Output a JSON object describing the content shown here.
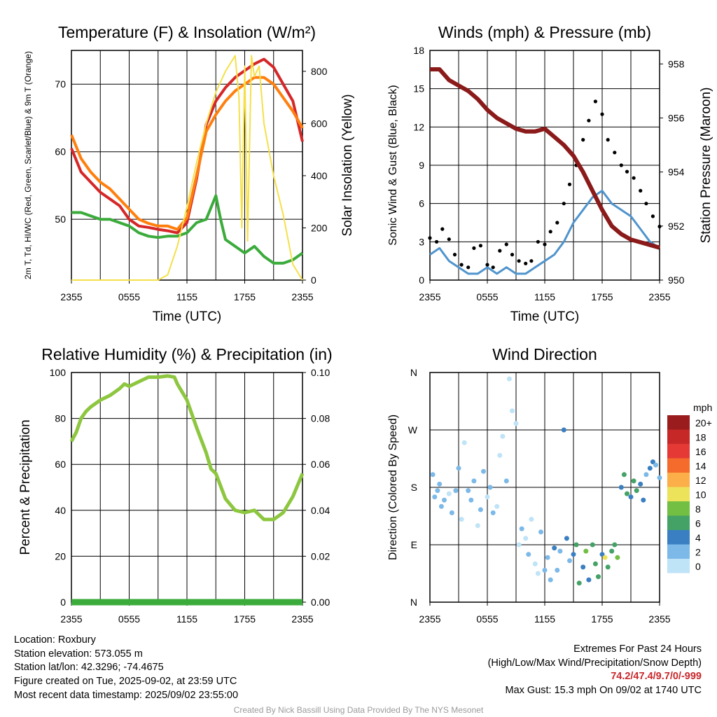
{
  "chart_data": [
    {
      "id": "temp",
      "type": "line",
      "title": "Temperature (F) & Insolation (W/m²)",
      "xlabel": "Time (UTC)",
      "ylabel": "2m T, Td, HI/WC (Red, Green, Scarlet/Blue) & 9m T (Orange)",
      "ylabel_right": "Solar Insolation (Yellow)",
      "x_ticks": [
        "2355",
        "0555",
        "1155",
        "1755",
        "2355"
      ],
      "x_range_hours": [
        0,
        24
      ],
      "y_ticks": [
        "50",
        "60",
        "70"
      ],
      "ylim": [
        41,
        75
      ],
      "y2_ticks": [
        "0",
        "200",
        "400",
        "600",
        "800"
      ],
      "y2lim": [
        0,
        880
      ],
      "series": [
        {
          "color": "#d62728",
          "axis": "left",
          "x": [
            0,
            1,
            2,
            3,
            4,
            5,
            6,
            7,
            8,
            9,
            10,
            11,
            12,
            13,
            14,
            15,
            16,
            17,
            18,
            19,
            20,
            21,
            22,
            23,
            24
          ],
          "y": [
            60.5,
            57,
            55.5,
            54,
            53,
            52,
            50,
            49,
            48.8,
            48.5,
            48.3,
            48,
            49.5,
            56,
            64,
            67.5,
            69.5,
            71,
            72,
            73,
            73.7,
            72.5,
            70,
            67.5,
            61.5
          ]
        },
        {
          "color": "#ff7f0e",
          "axis": "left",
          "x": [
            0,
            1,
            2,
            3,
            4,
            5,
            6,
            7,
            8,
            9,
            10,
            11,
            12,
            13,
            14,
            15,
            16,
            17,
            18,
            19,
            20,
            21,
            22,
            23,
            24
          ],
          "y": [
            62.5,
            59,
            57,
            55.5,
            54.5,
            53,
            51.5,
            50,
            49.4,
            49,
            49,
            48.5,
            50.2,
            56.5,
            63,
            65.5,
            67.5,
            69,
            70,
            71,
            71,
            70,
            68,
            66,
            63.5
          ]
        },
        {
          "color": "#3bab3b",
          "axis": "left",
          "x": [
            0,
            1,
            2,
            3,
            4,
            5,
            6,
            7,
            8,
            9,
            10,
            11,
            12,
            13,
            14,
            15,
            15.5,
            16,
            17,
            18,
            19,
            20,
            21,
            22,
            23,
            24
          ],
          "y": [
            51,
            51,
            50.5,
            50,
            50,
            49.5,
            49,
            48,
            47.5,
            47.3,
            47.5,
            47.5,
            48,
            49.5,
            50,
            53.5,
            50,
            47,
            46,
            45,
            46,
            44.5,
            43.5,
            43.5,
            44,
            45
          ]
        },
        {
          "color": "#f5e04a",
          "axis": "right",
          "x": [
            0,
            9,
            10,
            11,
            12,
            13,
            14,
            15,
            16,
            17,
            17.4,
            17.7,
            18,
            18.3,
            18.7,
            19,
            19.5,
            20,
            21,
            22,
            23,
            24
          ],
          "y": [
            0,
            0,
            20,
            130,
            280,
            450,
            600,
            720,
            800,
            860,
            700,
            200,
            820,
            150,
            860,
            780,
            820,
            600,
            400,
            250,
            60,
            0
          ]
        }
      ]
    },
    {
      "id": "wind",
      "type": "line",
      "title": "Winds (mph) & Pressure (mb)",
      "xlabel": "Time (UTC)",
      "ylabel": "Sonic Wind & Gust (Blue, Black)",
      "ylabel_right": "Station Pressure (Maroon)",
      "x_ticks": [
        "2355",
        "0555",
        "1155",
        "1755",
        "2355"
      ],
      "x_range_hours": [
        0,
        24
      ],
      "y_ticks": [
        "0",
        "3",
        "6",
        "9",
        "12",
        "15",
        "18"
      ],
      "ylim": [
        0,
        18
      ],
      "y2_ticks": [
        "950",
        "952",
        "954",
        "956",
        "958"
      ],
      "y2lim": [
        950,
        958.5
      ],
      "series": [
        {
          "color": "#4f94cd",
          "axis": "left",
          "kind": "line",
          "x": [
            0,
            1,
            2,
            3,
            4,
            5,
            6,
            7,
            8,
            9,
            10,
            11,
            12,
            13,
            14,
            15,
            16,
            17,
            18,
            19,
            20,
            21,
            22,
            23,
            24
          ],
          "y": [
            2,
            2.5,
            1.5,
            1,
            0.5,
            0.5,
            1,
            0.5,
            1,
            0.5,
            0.5,
            1,
            1.5,
            2,
            3,
            4.5,
            5.5,
            6.5,
            7,
            6,
            5.5,
            5,
            4,
            3,
            2.5
          ]
        },
        {
          "color": "#000000",
          "axis": "left",
          "kind": "dots",
          "x": [
            0,
            0.7,
            1.3,
            2,
            2.6,
            3.3,
            4,
            4.6,
            5.3,
            6,
            6.6,
            7.3,
            8,
            8.6,
            9.3,
            10,
            10.6,
            11.3,
            12,
            12.6,
            13.3,
            14,
            14.6,
            15.3,
            16,
            16.6,
            17.3,
            18,
            18.6,
            19.3,
            20,
            20.6,
            21.3,
            22,
            22.6,
            23.3,
            24
          ],
          "y": [
            3.3,
            3,
            4,
            3.2,
            2,
            1.2,
            1,
            2.5,
            2.7,
            1.2,
            1,
            2.3,
            2.8,
            2,
            1.5,
            1.3,
            1.5,
            3,
            2.8,
            3.8,
            4.5,
            6,
            7.5,
            9,
            11,
            12.5,
            14,
            13,
            11,
            10,
            9,
            8.5,
            8,
            7,
            6,
            5,
            4.2
          ]
        },
        {
          "color": "#8b1a1a",
          "axis": "right",
          "kind": "line",
          "x": [
            0,
            1,
            2,
            3,
            4,
            5,
            6,
            7,
            8,
            9,
            10,
            11,
            12,
            13,
            14,
            15,
            16,
            17,
            18,
            19,
            20,
            21,
            22,
            23,
            24
          ],
          "y": [
            957.8,
            957.8,
            957.4,
            957.2,
            957,
            956.7,
            956.3,
            956,
            955.8,
            955.6,
            955.5,
            955.5,
            955.6,
            955.3,
            955,
            954.6,
            954,
            953.3,
            952.6,
            952,
            951.7,
            951.5,
            951.4,
            951.3,
            951.2
          ]
        }
      ]
    },
    {
      "id": "rh",
      "type": "line",
      "title": "Relative Humidity (%) & Precipitation (in)",
      "xlabel": "",
      "ylabel": "Percent & Precipitation",
      "x_ticks": [
        "2355",
        "0555",
        "1155",
        "1755",
        "2355"
      ],
      "x_range_hours": [
        0,
        24
      ],
      "y_ticks": [
        "0",
        "20",
        "40",
        "60",
        "80",
        "100"
      ],
      "ylim": [
        0,
        100
      ],
      "y2_ticks": [
        "0.00",
        "0.02",
        "0.04",
        "0.06",
        "0.08",
        "0.10"
      ],
      "y2lim": [
        0,
        0.1
      ],
      "series": [
        {
          "color": "#8dc63f",
          "axis": "left",
          "x": [
            0,
            0.5,
            1,
            1.5,
            2,
            3,
            4,
            5,
            5.5,
            6,
            7,
            8,
            9,
            10,
            10.7,
            11,
            12,
            13,
            14,
            14.5,
            15,
            16,
            17,
            18,
            19,
            20,
            21,
            22,
            23,
            24
          ],
          "y": [
            70,
            74,
            80,
            83,
            85,
            88,
            90,
            93,
            95,
            94,
            96,
            98,
            98,
            98.5,
            98,
            95,
            88,
            76,
            65,
            58,
            56,
            45,
            40,
            39,
            40,
            36,
            36,
            39,
            46,
            56
          ]
        },
        {
          "color": "#3bab3b",
          "axis": "right",
          "x": [
            0,
            24
          ],
          "y": [
            0,
            0
          ]
        }
      ]
    },
    {
      "id": "dir",
      "type": "scatter",
      "title": "Wind Direction",
      "xlabel": "",
      "ylabel": "Direction (Colored By Speed)",
      "x_ticks": [
        "2355",
        "0555",
        "1155",
        "1755",
        "2355"
      ],
      "x_range_hours": [
        0,
        24
      ],
      "y_ticks": [
        "N",
        "E",
        "S",
        "W",
        "N"
      ],
      "ylim_degrees": [
        0,
        360
      ],
      "legend": {
        "title": "mph",
        "labels": [
          "20+",
          "18",
          "16",
          "14",
          "12",
          "10",
          "8",
          "6",
          "4",
          "2",
          "0"
        ],
        "colors": [
          "#9b1c1c",
          "#c62828",
          "#e53935",
          "#f46b2b",
          "#fcae48",
          "#ece35a",
          "#72bf44",
          "#45a267",
          "#3a7fc1",
          "#7cb9e8",
          "#bfe3f7"
        ]
      },
      "points_hours": [
        0.3,
        0.5,
        0.8,
        1,
        1.2,
        1.5,
        2,
        2.3,
        2.7,
        3,
        3.3,
        3.6,
        4,
        4.3,
        4.6,
        5,
        5.3,
        5.6,
        6,
        6.3,
        6.6,
        7,
        7.3,
        7.6,
        8,
        8.3,
        8.6,
        9,
        9.3,
        9.6,
        10,
        10.3,
        10.6,
        11,
        11.3,
        11.6,
        12,
        12.3,
        12.6,
        13,
        13.3,
        13.6,
        14,
        14.3,
        14.6,
        15,
        15.3,
        15.6,
        16,
        16.3,
        16.6,
        17,
        17.3,
        17.6,
        18,
        18.3,
        18.6,
        19,
        19.3,
        19.6,
        20,
        20.3,
        20.6,
        21,
        21.3,
        21.6,
        22,
        22.3,
        22.6,
        23,
        23.3,
        23.6,
        24
      ],
      "points_degrees": [
        200,
        165,
        175,
        185,
        150,
        160,
        170,
        140,
        175,
        210,
        130,
        250,
        175,
        160,
        190,
        120,
        145,
        205,
        165,
        180,
        140,
        150,
        230,
        260,
        190,
        350,
        300,
        280,
        90,
        115,
        100,
        75,
        130,
        60,
        45,
        110,
        50,
        70,
        35,
        85,
        50,
        80,
        270,
        100,
        65,
        75,
        90,
        30,
        55,
        80,
        35,
        90,
        60,
        40,
        75,
        70,
        55,
        80,
        90,
        70,
        180,
        200,
        170,
        165,
        190,
        175,
        185,
        160,
        200,
        210,
        220,
        215,
        195
      ],
      "points_speed_mph": [
        2,
        3,
        2,
        3,
        3,
        2,
        1,
        2,
        3,
        2,
        1,
        1,
        2,
        3,
        2,
        1,
        2,
        3,
        1,
        2,
        3,
        1,
        1,
        0,
        2,
        1,
        0,
        1,
        1,
        2,
        1,
        2,
        1,
        1,
        0,
        2,
        2,
        2,
        3,
        4,
        2,
        3,
        5,
        4,
        3,
        4,
        6,
        7,
        5,
        8,
        4,
        6,
        7,
        6,
        5,
        10,
        7,
        6,
        7,
        8,
        4,
        6,
        7,
        5,
        6,
        7,
        4,
        5,
        3,
        4,
        5,
        3,
        2
      ]
    }
  ],
  "footer": {
    "location": "Location: Roxbury",
    "elevation": "Station elevation: 573.055 m",
    "latlon": "Station lat/lon: 42.3296; -74.4675",
    "created": "Figure created on Tue, 2025-09-02, at 23:59 UTC",
    "timestamp": "Most recent data timestamp: 2025/09/02 23:55:00"
  },
  "extremes": {
    "title": "Extremes For Past 24 Hours",
    "subtitle": "(High/Low/Max Wind/Precipitation/Snow Depth)",
    "values": "74.2/47.4/9.7/0/-999",
    "gust": "Max Gust: 15.3 mph On 09/02 at 1740 UTC"
  },
  "credit": "Created By Nick Bassill Using Data Provided By The NYS Mesonet"
}
